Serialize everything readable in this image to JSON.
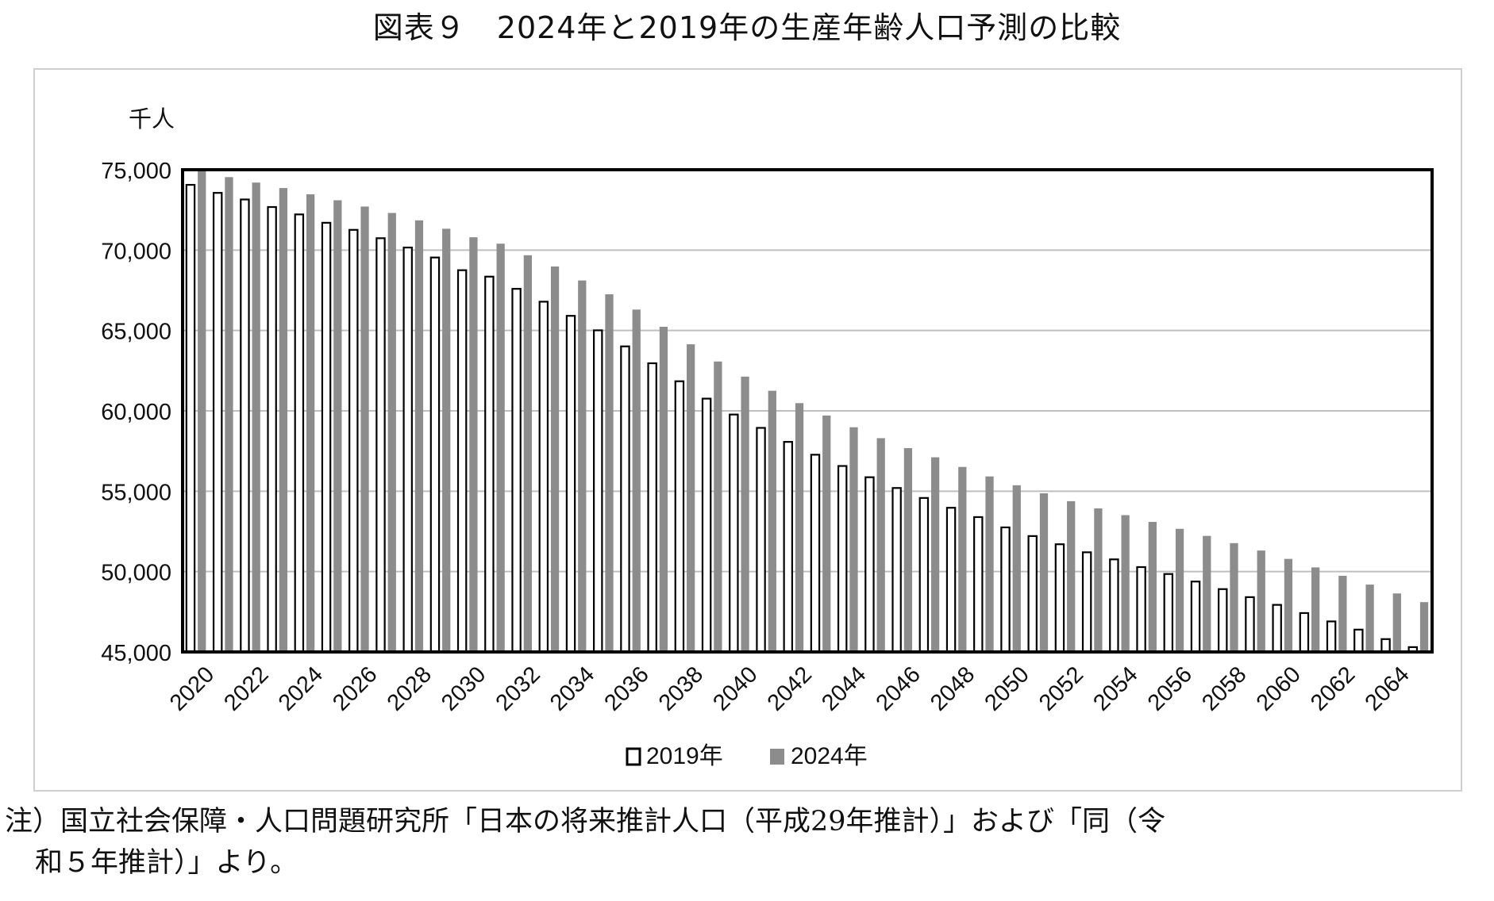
{
  "title": "図表９　2024年と2019年の生産年齢人口予測の比較",
  "note": {
    "line1": "注）国立社会保障・人口問題研究所「日本の将来推計人口（平成29年推計）」および「同（令",
    "line2": "和５年推計）」より。"
  },
  "colors": {
    "series_2019_fill": "#ffffff",
    "series_2019_stroke": "#000000",
    "series_2024_fill": "#8c8c8c",
    "gridline": "#bfbfbf",
    "plot_border": "#000000"
  },
  "chart_data": {
    "type": "bar",
    "unit_label": "千人",
    "ylim": [
      45000,
      75000
    ],
    "yticks": [
      "45,000",
      "50,000",
      "55,000",
      "60,000",
      "65,000",
      "70,000",
      "75,000"
    ],
    "ytick_values": [
      45000,
      50000,
      55000,
      60000,
      65000,
      70000,
      75000
    ],
    "grid": true,
    "legend_position": "bottom",
    "categories": [
      2020,
      2021,
      2022,
      2023,
      2024,
      2025,
      2026,
      2027,
      2028,
      2029,
      2030,
      2031,
      2032,
      2033,
      2034,
      2035,
      2036,
      2037,
      2038,
      2039,
      2040,
      2041,
      2042,
      2043,
      2044,
      2045,
      2046,
      2047,
      2048,
      2049,
      2050,
      2051,
      2052,
      2053,
      2054,
      2055,
      2056,
      2057,
      2058,
      2059,
      2060,
      2061,
      2062,
      2063,
      2064,
      2065
    ],
    "xtick_labels": [
      "2020",
      "",
      "2022",
      "",
      "2024",
      "",
      "2026",
      "",
      "2028",
      "",
      "2030",
      "",
      "2032",
      "",
      "2034",
      "",
      "2036",
      "",
      "2038",
      "",
      "2040",
      "",
      "2042",
      "",
      "2044",
      "",
      "2046",
      "",
      "2048",
      "",
      "2050",
      "",
      "2052",
      "",
      "2054",
      "",
      "2056",
      "",
      "2058",
      "",
      "2060",
      "",
      "2062",
      "",
      "2064",
      ""
    ],
    "series": [
      {
        "name": "2019年",
        "values": [
          74060,
          73560,
          73150,
          72680,
          72220,
          71700,
          71260,
          70740,
          70160,
          69540,
          68750,
          68350,
          67590,
          66790,
          65910,
          65010,
          64010,
          62960,
          61840,
          60760,
          59770,
          58940,
          58070,
          57270,
          56570,
          55870,
          55200,
          54580,
          53970,
          53390,
          52750,
          52210,
          51700,
          51200,
          50760,
          50280,
          49850,
          49380,
          48910,
          48410,
          47930,
          47420,
          46900,
          46390,
          45800,
          45300
        ]
      },
      {
        "name": "2024年",
        "values": [
          75000,
          74540,
          74200,
          73860,
          73470,
          73100,
          72710,
          72310,
          71850,
          71330,
          70800,
          70400,
          69680,
          68980,
          68110,
          67250,
          66300,
          65230,
          64140,
          63070,
          62130,
          61250,
          60480,
          59710,
          58980,
          58300,
          57680,
          57110,
          56510,
          55920,
          55370,
          54870,
          54380,
          53930,
          53510,
          53090,
          52660,
          52220,
          51770,
          51310,
          50790,
          50260,
          49740,
          49190,
          48640,
          48100
        ]
      }
    ]
  }
}
